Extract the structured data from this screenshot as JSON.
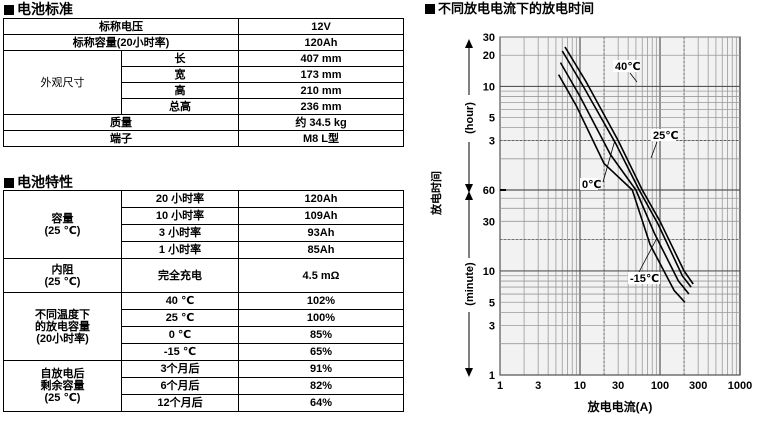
{
  "battery_standard": {
    "title": "电池标准",
    "rows": {
      "nominal_voltage": {
        "label": "标称电压",
        "value": "12V"
      },
      "nominal_capacity": {
        "label": "标称容量(20小时率)",
        "value": "120Ah"
      },
      "dimensions": {
        "label": "外观尺寸",
        "length": {
          "label": "长",
          "value": "407 mm"
        },
        "width": {
          "label": "宽",
          "value": "173 mm"
        },
        "height": {
          "label": "高",
          "value": "210 mm"
        },
        "total_height": {
          "label": "总高",
          "value": "236 mm"
        }
      },
      "weight": {
        "label": "质量",
        "value": "约 34.5 kg"
      },
      "terminal": {
        "label": "端子",
        "value": "M8 L型"
      }
    }
  },
  "battery_characteristics": {
    "title": "电池特性",
    "capacity": {
      "label_line1": "容量",
      "label_line2": "(25 ℃)",
      "rows": [
        {
          "rate": "20 小时率",
          "value": "120Ah"
        },
        {
          "rate": "10 小时率",
          "value": "109Ah"
        },
        {
          "rate": "3 小时率",
          "value": "93Ah"
        },
        {
          "rate": "1 小时率",
          "value": "85Ah"
        }
      ]
    },
    "internal_resistance": {
      "label_line1": "内阻",
      "label_line2": "(25 ℃)",
      "condition": "完全充电",
      "value": "4.5 mΩ"
    },
    "temp_capacity": {
      "label_line1": "不同温度下",
      "label_line2": "的放电容量",
      "label_line3": "(20小时率)",
      "rows": [
        {
          "temp": "40 ℃",
          "value": "102%"
        },
        {
          "temp": "25 ℃",
          "value": "100%"
        },
        {
          "temp": "0 ℃",
          "value": "85%"
        },
        {
          "temp": "-15 ℃",
          "value": "65%"
        }
      ]
    },
    "self_discharge": {
      "label_line1": "自放电后",
      "label_line2": "剩余容量",
      "label_line3": "(25 ℃)",
      "rows": [
        {
          "period": "3个月后",
          "value": "91%"
        },
        {
          "period": "6个月后",
          "value": "82%"
        },
        {
          "period": "12个月后",
          "value": "64%"
        }
      ]
    }
  },
  "chart_data": {
    "type": "line",
    "title": "不同放电电流下的放电时间",
    "xlabel": "放电电流(A)",
    "ylabel": "放电时间",
    "ylabel_hour": "(hour)",
    "ylabel_minute": "(minute)",
    "x_scale": "log",
    "xlim": [
      1,
      1000
    ],
    "x_ticks": [
      "1",
      "3",
      "10",
      "30",
      "100",
      "300",
      "1000"
    ],
    "y_scale": "log",
    "y_hour_ticks": [
      "30",
      "20",
      "10",
      "5",
      "3"
    ],
    "y_minute_ticks": [
      "60",
      "30",
      "10",
      "5",
      "3",
      "1"
    ],
    "grid": true,
    "series": [
      {
        "name": "40℃",
        "points": [
          [
            6.5,
            24
          ],
          [
            12,
            11
          ],
          [
            30,
            3
          ],
          [
            60,
            1
          ],
          [
            100,
            30
          ],
          [
            200,
            10
          ],
          [
            260,
            7.5
          ]
        ]
      },
      {
        "name": "25℃",
        "points": [
          [
            6.0,
            22
          ],
          [
            11,
            10
          ],
          [
            28,
            2.8
          ],
          [
            55,
            55
          ],
          [
            95,
            28
          ],
          [
            190,
            9
          ],
          [
            245,
            7
          ]
        ]
      },
      {
        "name": "0℃",
        "points": [
          [
            5.7,
            17
          ],
          [
            10,
            8
          ],
          [
            24,
            2.2
          ],
          [
            50,
            45
          ],
          [
            85,
            23
          ],
          [
            170,
            8
          ],
          [
            230,
            6
          ]
        ]
      },
      {
        "name": "-15℃",
        "points": [
          [
            5.4,
            13
          ],
          [
            9,
            6.5
          ],
          [
            20,
            1.8
          ],
          [
            45,
            35
          ],
          [
            75,
            18
          ],
          [
            150,
            6.5
          ],
          [
            205,
            5
          ]
        ]
      }
    ],
    "labels": [
      {
        "text": "40℃",
        "series": "40℃"
      },
      {
        "text": "25℃",
        "series": "25℃"
      },
      {
        "text": "0℃",
        "series": "0℃"
      },
      {
        "text": "-15℃",
        "series": "-15℃"
      }
    ]
  }
}
